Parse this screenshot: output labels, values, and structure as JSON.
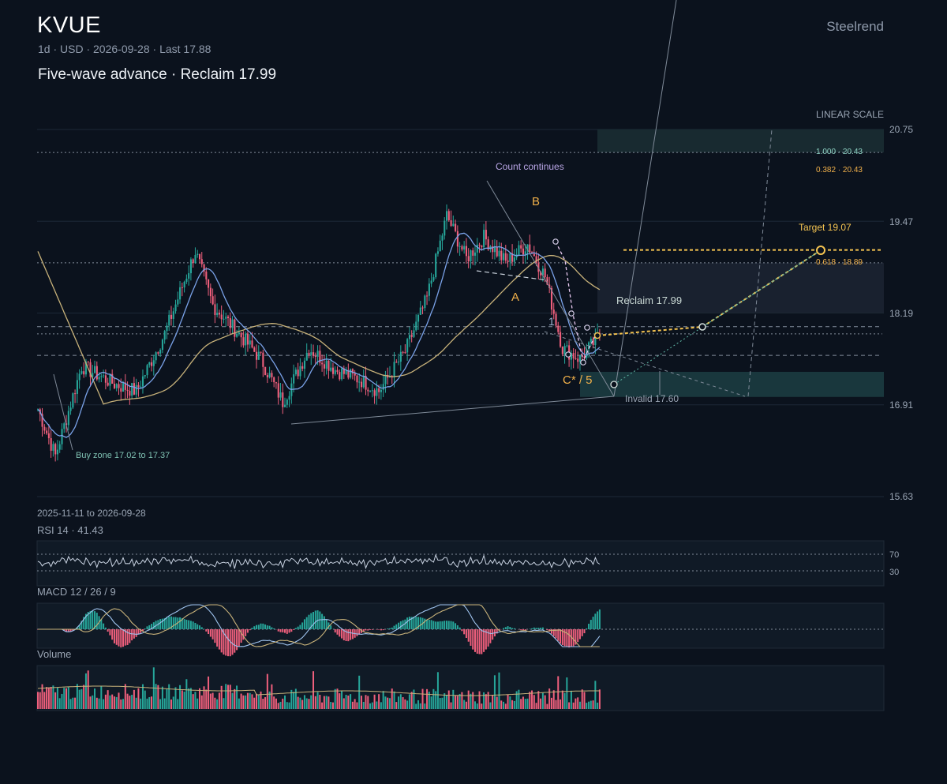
{
  "header": {
    "ticker": "KVUE",
    "meta": "1d · USD · 2026-09-28 · Last 17.88",
    "headline": "Five-wave advance · Reclaim 17.99",
    "brand": "Steelrend"
  },
  "colors": {
    "background": "#0b121d",
    "up": "#26a69a",
    "down": "#ef5f7c",
    "ma_fast": "#7aa2e8",
    "ma_slow": "#c8b27a",
    "accent": "#f5c451",
    "wave_label": "#f0b04a",
    "count_label": "#b9a6e6",
    "zone": "#1a3a3f"
  },
  "chart_data": {
    "type": "candlestick",
    "scale_label": "LINEAR SCALE",
    "date_range": "2025-11-11 to 2026-09-28",
    "y_ticks": [
      "20.75",
      "19.47",
      "18.19",
      "16.91",
      "15.63"
    ],
    "ylim": [
      15.63,
      20.75
    ],
    "anchors": [
      {
        "i": 0,
        "price": 16.85
      },
      {
        "i": 8,
        "price": 16.2
      },
      {
        "i": 20,
        "price": 17.45
      },
      {
        "i": 35,
        "price": 17.2
      },
      {
        "i": 45,
        "price": 17.1
      },
      {
        "i": 58,
        "price": 17.9
      },
      {
        "i": 72,
        "price": 19.05
      },
      {
        "i": 80,
        "price": 18.3
      },
      {
        "i": 92,
        "price": 17.9
      },
      {
        "i": 102,
        "price": 17.55
      },
      {
        "i": 112,
        "price": 16.95
      },
      {
        "i": 124,
        "price": 17.7
      },
      {
        "i": 136,
        "price": 17.4
      },
      {
        "i": 148,
        "price": 17.25
      },
      {
        "i": 156,
        "price": 17.1
      },
      {
        "i": 168,
        "price": 17.65
      },
      {
        "i": 178,
        "price": 18.4
      },
      {
        "i": 187,
        "price": 19.55
      },
      {
        "i": 196,
        "price": 18.95
      },
      {
        "i": 204,
        "price": 19.25
      },
      {
        "i": 214,
        "price": 18.9
      },
      {
        "i": 224,
        "price": 19.15
      },
      {
        "i": 232,
        "price": 18.7
      },
      {
        "i": 240,
        "price": 17.7
      },
      {
        "i": 248,
        "price": 17.55
      },
      {
        "i": 257,
        "price": 17.88
      }
    ],
    "bars": 258,
    "hlines": [
      {
        "price": 20.43,
        "style": "dotted"
      },
      {
        "price": 18.89,
        "style": "dotted"
      },
      {
        "price": 18.0,
        "style": "dashed"
      },
      {
        "price": 17.9,
        "style": "dotted"
      },
      {
        "price": 17.6,
        "style": "dashed"
      },
      {
        "price": 19.07,
        "style": "target"
      }
    ],
    "zones": [
      {
        "label": "Buy zone 17.02 to 17.37",
        "from": 17.02,
        "to": 17.37
      },
      {
        "label": "Reclaim 17.99",
        "from": 18.19,
        "to": 18.89
      },
      {
        "label": "fib",
        "from": 20.43,
        "to": 20.75
      }
    ],
    "fib_levels": [
      {
        "label": "1.000 · 20.43",
        "price": 20.43
      },
      {
        "label": "0.382 · 20.43",
        "price": 20.43
      },
      {
        "label": "0.618 · 18.89",
        "price": 18.89
      }
    ],
    "annotations": {
      "count_continues": "Count continues",
      "wave_a": "A",
      "wave_b": "B",
      "wave_1": "1",
      "wave_c5": "C* / 5",
      "reclaim": "Reclaim 17.99",
      "target": "Target 19.07",
      "invalid": "Invalid 17.60",
      "buy_zone": "Buy zone 17.02 to 17.37"
    },
    "projection": [
      {
        "i": 257,
        "price": 17.88
      },
      {
        "i": 320,
        "price": 18.0
      },
      {
        "i": 350,
        "price": 18.95
      }
    ],
    "last_price": 17.88,
    "target_price": 19.07
  },
  "indicators": {
    "rsi": {
      "label": "RSI 14 · 41.43",
      "value": 41.43,
      "levels": [
        "70",
        "30"
      ]
    },
    "macd": {
      "label": "MACD 12 / 26 / 9"
    },
    "volume": {
      "label": "Volume"
    }
  }
}
